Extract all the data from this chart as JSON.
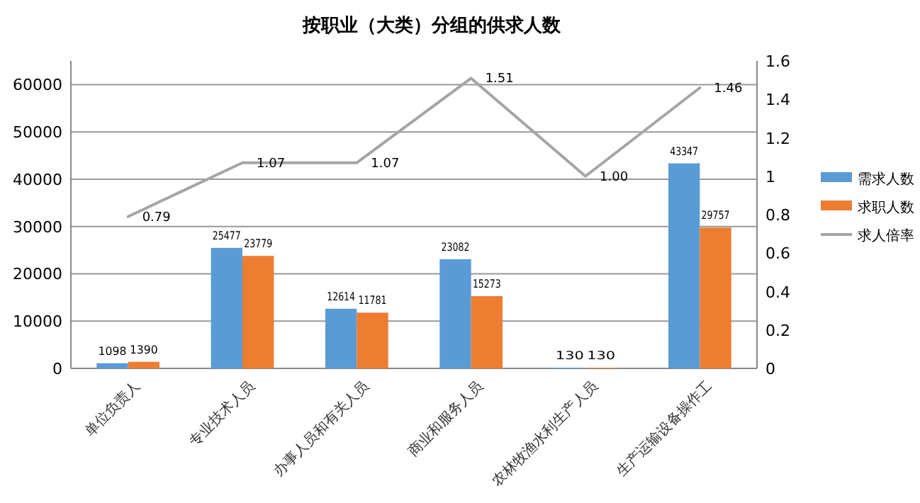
{
  "chart_data": {
    "type": "bar",
    "title": "按职业（大类）分组的供求人数",
    "categories": [
      "单位负责人",
      "专业技术人员",
      "办事人员和有关人员",
      "商业和服务人员",
      "农林牧渔水利生产人员",
      "生产运输设备操作工"
    ],
    "series": [
      {
        "name": "需求人数",
        "color": "#5b9bd5",
        "values": [
          1098,
          25477,
          12614,
          23082,
          130,
          43347
        ]
      },
      {
        "name": "求职人数",
        "color": "#ed7d31",
        "values": [
          1390,
          23779,
          11781,
          15273,
          130,
          29757
        ]
      },
      {
        "name": "求人倍率",
        "type": "line",
        "axis": "y2",
        "color": "#a5a5a5",
        "values": [
          0.79,
          1.07,
          1.07,
          1.51,
          1.0,
          1.46
        ],
        "value_labels": [
          "0.79",
          "1.07",
          "1.07",
          "1.51",
          "1.00",
          "1.46"
        ]
      }
    ],
    "data_labels": true,
    "ylim": [
      0,
      65000
    ],
    "yticks": [
      0,
      10000,
      20000,
      30000,
      40000,
      50000,
      60000
    ],
    "y2lim": [
      0,
      1.6
    ],
    "y2ticks": [
      0,
      {
        "value": 0.2,
        "label": "0.2"
      },
      {
        "value": 0.4,
        "label": "0.4"
      },
      {
        "value": 0.6,
        "label": "0.6"
      },
      {
        "value": 0.8,
        "label": "0.8"
      },
      1,
      {
        "value": 1.2,
        "label": "1.2"
      },
      {
        "value": 1.4,
        "label": "1.4"
      },
      {
        "value": 1.6,
        "label": "1.6"
      }
    ],
    "grid": "y",
    "legend": "right",
    "marker": "none",
    "line_style": "solid"
  }
}
